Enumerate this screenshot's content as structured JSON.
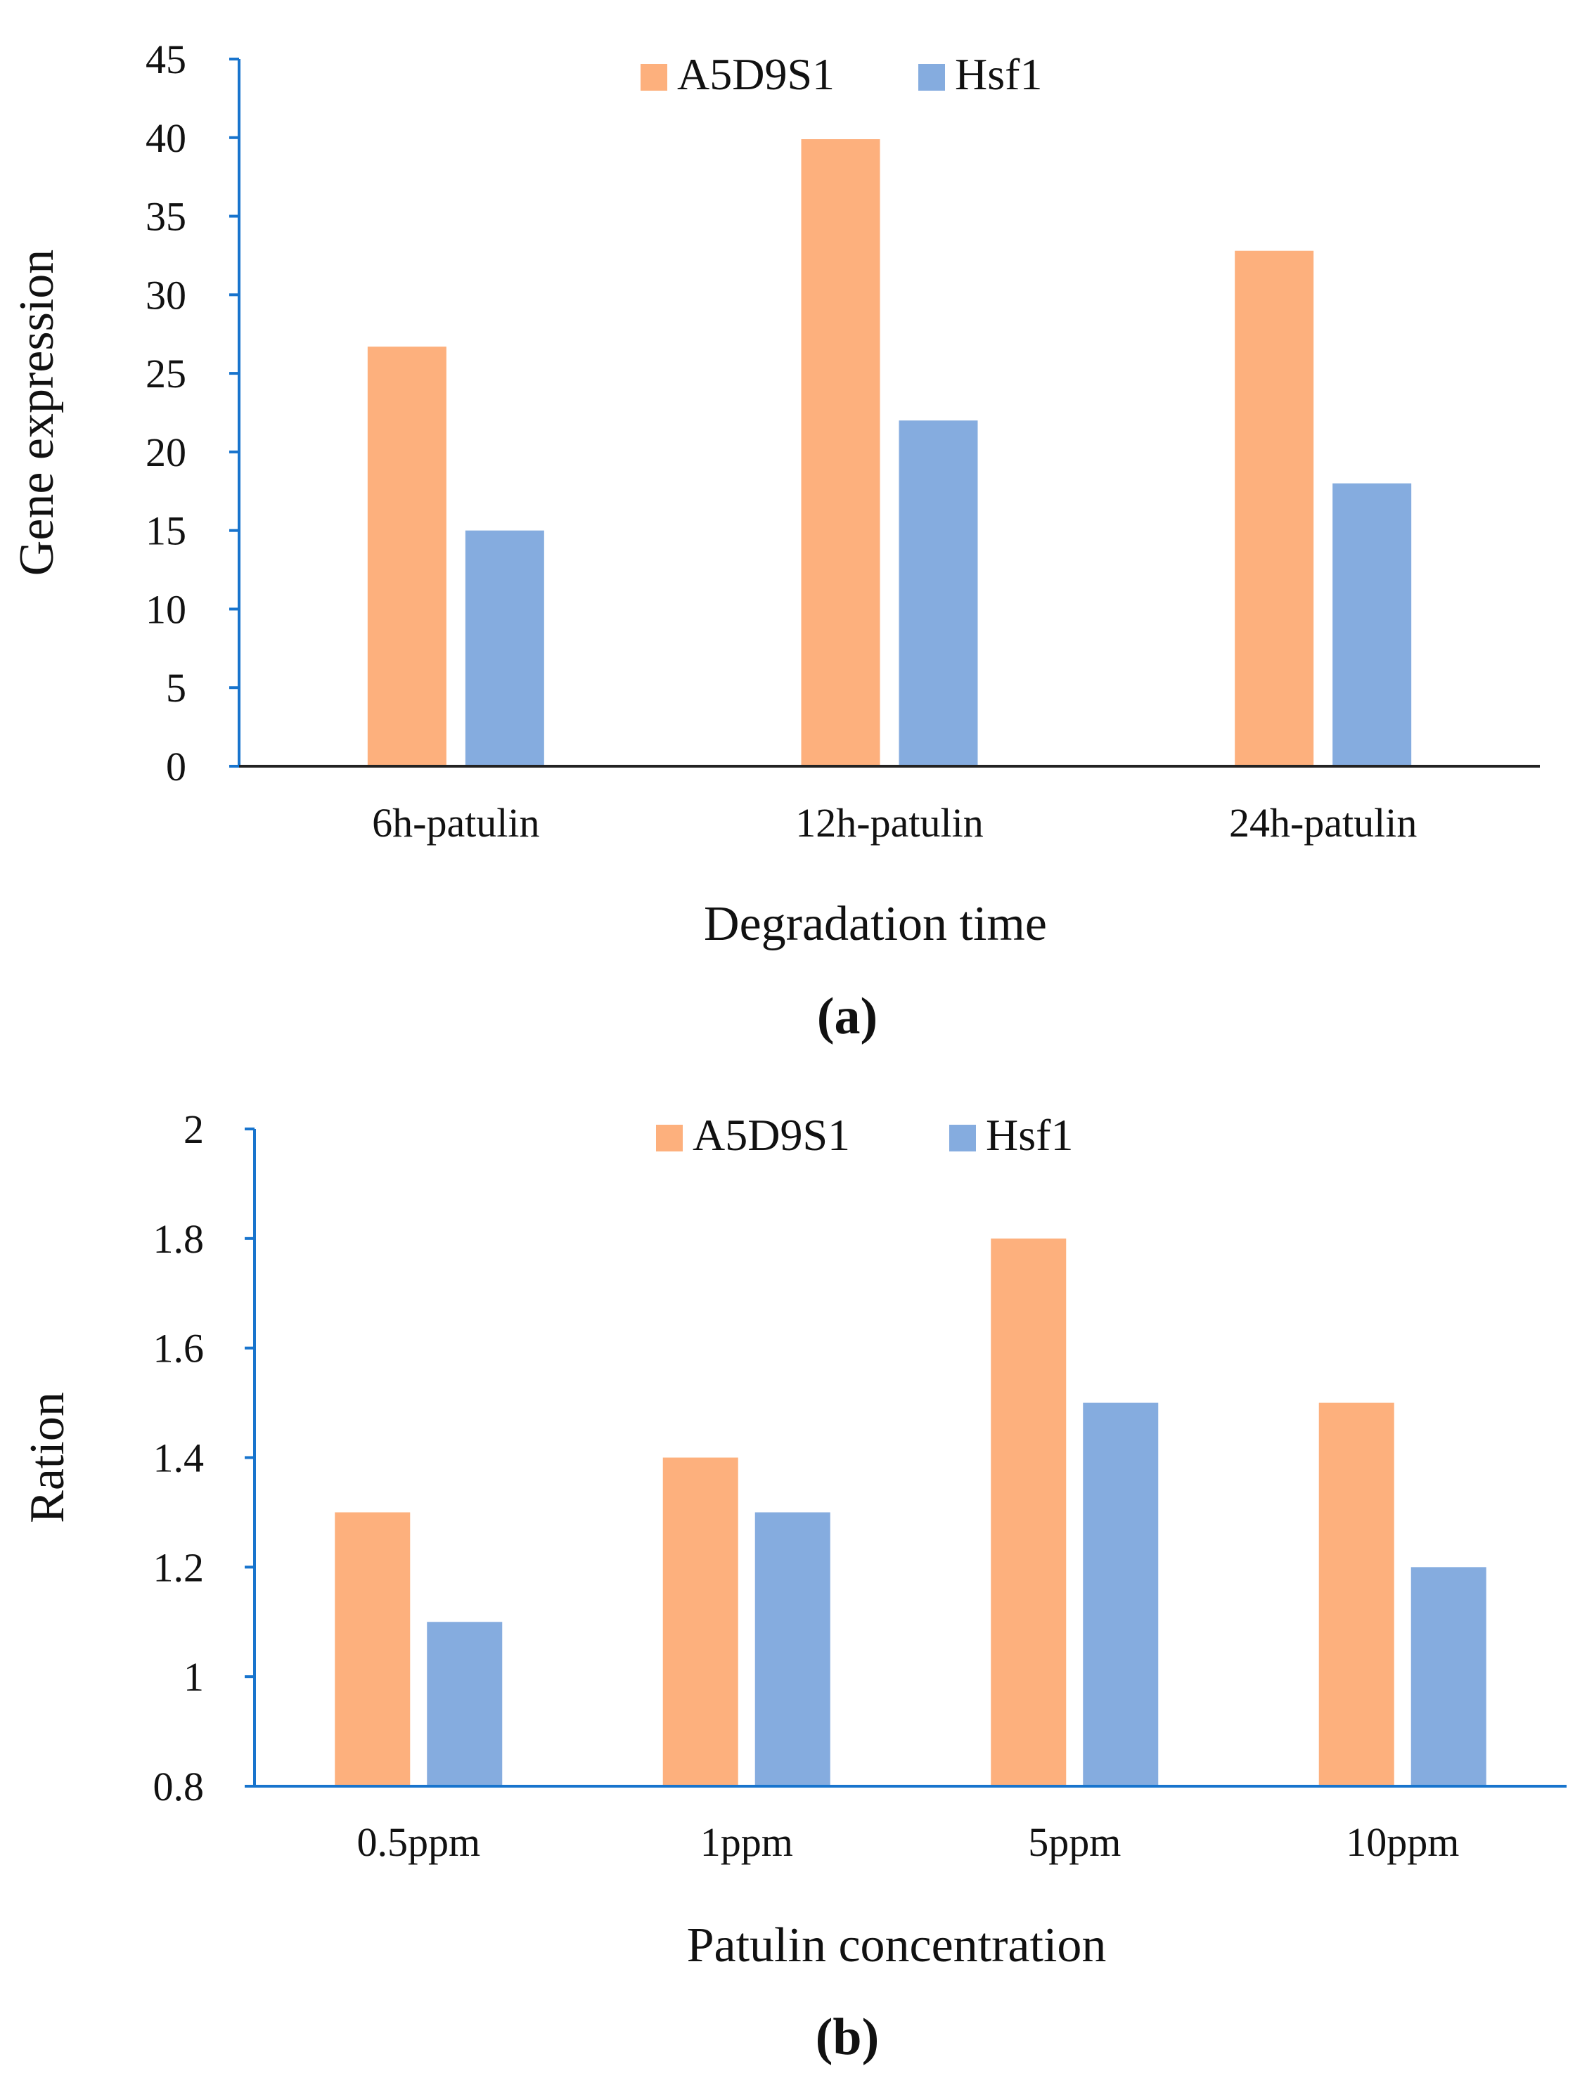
{
  "colors": {
    "series_a": "#FDB07D",
    "series_b": "#85ACDF",
    "axis": "#1874CD",
    "axis_a_base": "#222222"
  },
  "chart_data": [
    {
      "type": "bar",
      "panel_label": "(a)",
      "categories": [
        "6h-patulin",
        "12h-patulin",
        "24h-patulin"
      ],
      "series": [
        {
          "name": "A5D9S1",
          "values": [
            26.7,
            39.9,
            32.8
          ]
        },
        {
          "name": "Hsf1",
          "values": [
            15.0,
            22.0,
            18.0
          ]
        }
      ],
      "xlabel": "Degradation time",
      "ylabel": "Gene expression",
      "ylim": [
        0,
        45
      ],
      "yticks": [
        0,
        5,
        10,
        15,
        20,
        25,
        30,
        35,
        40,
        45
      ],
      "ytick_labels": [
        "0",
        "5",
        "10",
        "15",
        "20",
        "25",
        "30",
        "35",
        "40",
        "45"
      ],
      "grid": false,
      "legend_position": "top-center"
    },
    {
      "type": "bar",
      "panel_label": "(b)",
      "categories": [
        "0.5ppm",
        "1ppm",
        "5ppm",
        "10ppm"
      ],
      "series": [
        {
          "name": "A5D9S1",
          "values": [
            1.3,
            1.4,
            1.8,
            1.5
          ]
        },
        {
          "name": "Hsf1",
          "values": [
            1.1,
            1.3,
            1.5,
            1.2
          ]
        }
      ],
      "xlabel": "Patulin concentration",
      "ylabel": "Ration",
      "ylim": [
        0.8,
        2.0
      ],
      "yticks": [
        0.8,
        1.0,
        1.2,
        1.4,
        1.6,
        1.8,
        2.0
      ],
      "ytick_labels": [
        "0.8",
        "1",
        "1.2",
        "1.4",
        "1.6",
        "1.8",
        "2"
      ],
      "grid": false,
      "legend_position": "top-center"
    }
  ]
}
